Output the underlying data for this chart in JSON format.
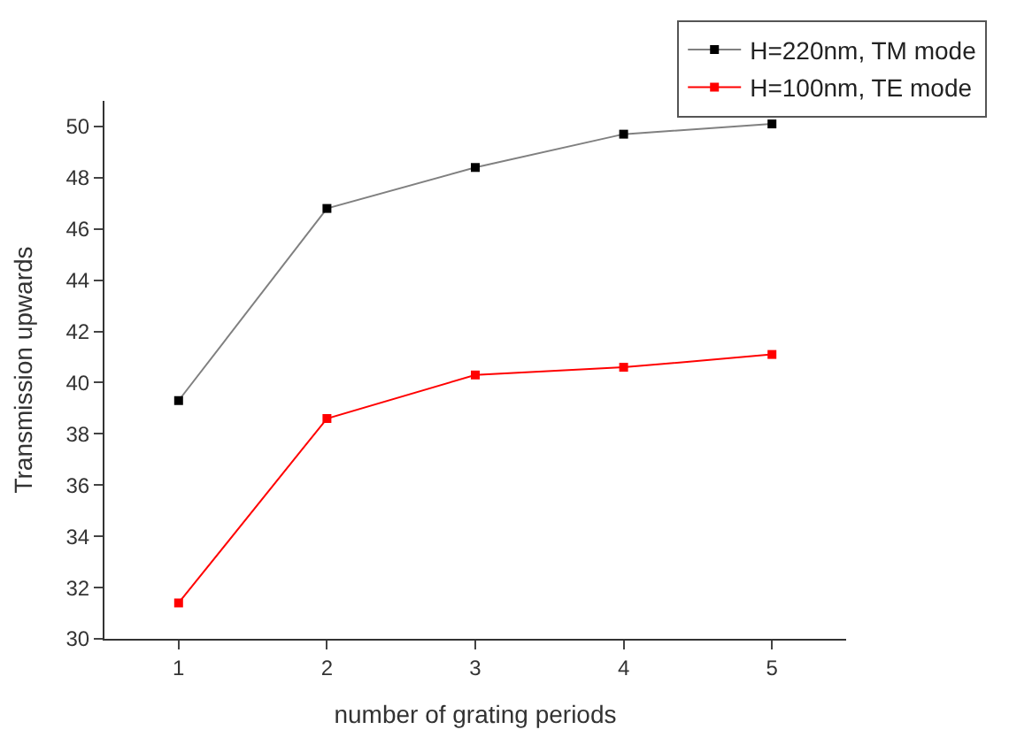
{
  "chart_data": {
    "type": "line",
    "xlabel": "number of grating periods",
    "ylabel": "Transmission upwards",
    "x": [
      1,
      2,
      3,
      4,
      5
    ],
    "series": [
      {
        "name": "H=220nm, TM mode",
        "color": "#000000",
        "values": [
          39.3,
          46.8,
          48.4,
          49.7,
          50.1
        ]
      },
      {
        "name": "H=100nm, TE mode",
        "color": "#ff0000",
        "values": [
          31.4,
          38.6,
          40.3,
          40.6,
          41.1
        ]
      }
    ],
    "xlim": [
      0.5,
      5.5
    ],
    "xticks": [
      1,
      2,
      3,
      4,
      5
    ],
    "ylim": [
      30,
      51
    ],
    "yticks": [
      30,
      32,
      34,
      36,
      38,
      40,
      42,
      44,
      46,
      48,
      50
    ],
    "legend": "top right",
    "marker": "square",
    "line_style": "solid"
  }
}
